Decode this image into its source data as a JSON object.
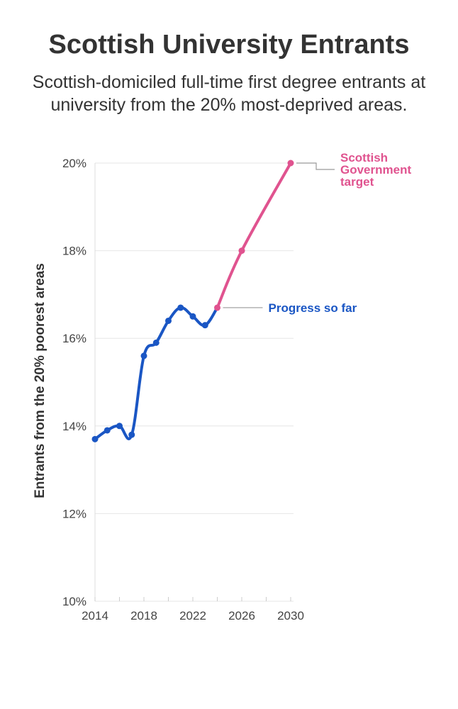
{
  "title": "Scottish University Entrants",
  "subtitle": "Scottish-domiciled full-time first degree entrants at university from the 20% most-deprived areas.",
  "colors": {
    "progress": "#1a56c4",
    "target": "#e0538f",
    "grid": "#e6e6e6",
    "leader": "#999999"
  },
  "chart_data": {
    "type": "line",
    "title": "Scottish University Entrants",
    "subtitle": "Scottish-domiciled full-time first degree entrants at university from the 20% most-deprived areas.",
    "xlabel": "",
    "ylabel": "Entrants from the 20% poorest areas",
    "xlim": [
      2014,
      2030
    ],
    "ylim": [
      10,
      20
    ],
    "x_ticks": [
      2014,
      2018,
      2022,
      2026,
      2030
    ],
    "y_ticks": [
      10,
      12,
      14,
      16,
      18,
      20
    ],
    "y_tick_labels": [
      "10%",
      "12%",
      "14%",
      "16%",
      "18%",
      "20%"
    ],
    "grid": "horizontal",
    "series": [
      {
        "name": "Progress so far",
        "color": "#1a56c4",
        "x": [
          2014,
          2015,
          2016,
          2017,
          2018,
          2019,
          2020,
          2021,
          2022,
          2023,
          2024
        ],
        "values": [
          13.7,
          13.9,
          14.0,
          13.8,
          15.6,
          15.9,
          16.4,
          16.7,
          16.5,
          16.3,
          16.7
        ]
      },
      {
        "name": "Scottish Government target",
        "color": "#e0538f",
        "x": [
          2024,
          2026,
          2030
        ],
        "values": [
          16.7,
          18.0,
          20.0
        ]
      }
    ],
    "annotations": [
      {
        "text": "Progress so far",
        "series": 0
      },
      {
        "text": "Scottish Government target",
        "series": 1
      }
    ]
  }
}
